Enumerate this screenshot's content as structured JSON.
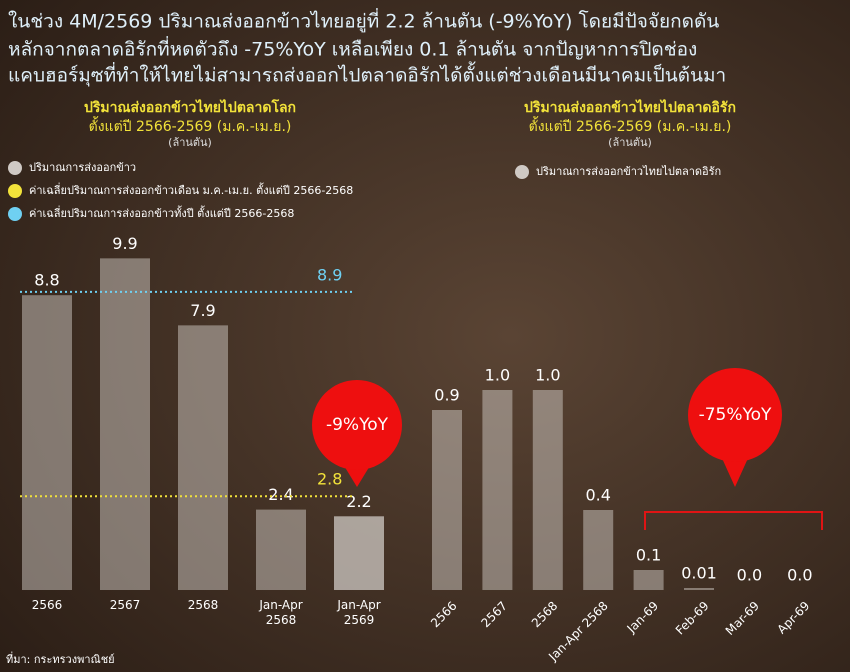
{
  "header": {
    "lines": [
      "ในช่วง 4M/2569 ปริมาณส่งออกข้าวไทยอยู่ที่ 2.2 ล้านตัน (-9%YoY) โดยมีปัจจัยกดดัน",
      "หลักจากตลาดอิรักที่หดตัวถึง -75%YoY เหลือเพียง 0.1 ล้านตัน จากปัญหาการปิดช่อง",
      "แคบฮอร์มุซที่ทำให้ไทยไม่สามารถส่งออกไปตลาดอิรักได้ตั้งแต่ช่วงเดือนมีนาคมเป็นต้นมา"
    ]
  },
  "source": "ที่มา: กระทรวงพาณิชย์",
  "chart_data": [
    {
      "type": "bar",
      "title": "ปริมาณส่งออกข้าวไทยไปตลาดโลก",
      "subtitle": "ตั้งแต่ปี 2566-2569 (ม.ค.-เม.ย.)",
      "unit": "(ล้านตัน)",
      "categories": [
        "2566",
        "2567",
        "2568",
        "Jan-Apr 2568",
        "Jan-Apr 2569"
      ],
      "series": [
        {
          "name": "ปริมาณการส่งออกข้าว",
          "color": "#cfc9c4",
          "values": [
            8.8,
            9.9,
            7.9,
            2.4,
            2.2
          ]
        }
      ],
      "reference_lines": [
        {
          "name": "ค่าเฉลี่ยปริมาณการส่งออกข้าวเดือน ม.ค.-เม.ย. ตั้งแต่ปี 2566-2568",
          "color": "#f2e23a",
          "value": 2.8
        },
        {
          "name": "ค่าเฉลี่ยปริมาณการส่งออกข้าวทั้งปี ตั้งแต่ปี 2566-2568",
          "color": "#6fd0f2",
          "value": 8.9
        }
      ],
      "annotation": "-9%YoY",
      "ylim": [
        0,
        10
      ]
    },
    {
      "type": "bar",
      "title": "ปริมาณส่งออกข้าวไทยไปตลาดอิรัก",
      "subtitle": "ตั้งแต่ปี 2566-2569 (ม.ค.-เม.ย.)",
      "unit": "(ล้านตัน)",
      "categories": [
        "2566",
        "2567",
        "2568",
        "Jan-Apr 2568",
        "Jan-69",
        "Feb-69",
        "Mar-69",
        "Apr-69"
      ],
      "series": [
        {
          "name": "ปริมาณการส่งออกข้าวไทยไปตลาดอิรัก",
          "color": "#cfc9c4",
          "values": [
            0.9,
            1,
            1,
            0.4,
            0.1,
            0.01,
            0,
            0
          ],
          "value_labels": [
            "0.9",
            "1.0",
            "1.0",
            "0.4",
            "0.1",
            "0.01",
            "0.0",
            "0.0"
          ]
        }
      ],
      "annotation": "-75%YoY",
      "ylim": [
        0,
        1
      ]
    }
  ]
}
